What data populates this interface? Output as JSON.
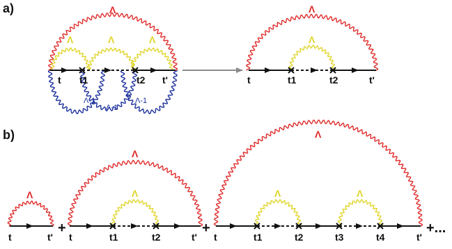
{
  "colors": {
    "outer_propagator": "#e02a2a",
    "inner_propagator": "#e0d52a",
    "inverse_propagator": "#1a2f9c",
    "line": "#111111",
    "arrow_connector": "#8c8c8c"
  },
  "panel_a": {
    "label": "a)",
    "left": {
      "time_labels": [
        "t",
        "t1",
        "t2",
        "t'"
      ],
      "outer_symbol": "Λ",
      "inner_symbols": [
        "Λ",
        "Λ",
        "Λ"
      ],
      "inverse_labels": [
        "Λ-1",
        "Λ-1",
        "Λ-1"
      ]
    },
    "right": {
      "time_labels": [
        "t",
        "t1",
        "t2",
        "t'"
      ],
      "outer_symbol": "Λ",
      "inner_symbol": "Λ"
    }
  },
  "panel_b": {
    "label": "b)",
    "terms": [
      {
        "time_labels": [
          "t",
          "t'"
        ],
        "outer_symbol": "Λ",
        "inner_symbols": []
      },
      {
        "time_labels": [
          "t",
          "t1",
          "t2",
          "t'"
        ],
        "outer_symbol": "Λ",
        "inner_symbols": [
          "Λ"
        ]
      },
      {
        "time_labels": [
          "t",
          "t1",
          "t2",
          "t3",
          "t4",
          "t'"
        ],
        "outer_symbol": "Λ",
        "inner_symbols": [
          "Λ",
          "Λ"
        ]
      }
    ],
    "operators": [
      "+",
      "+",
      "+..."
    ]
  }
}
